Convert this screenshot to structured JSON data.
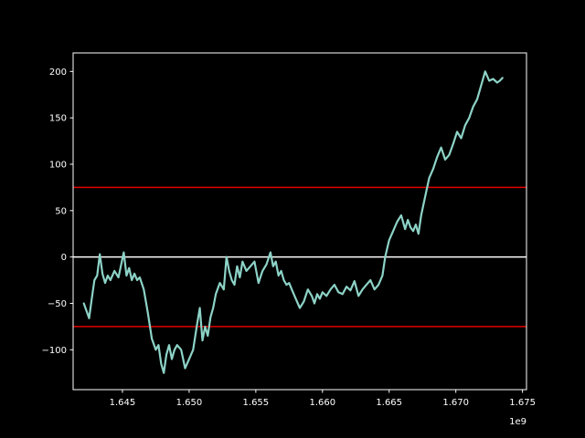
{
  "chart_data": {
    "type": "line",
    "title": "",
    "xlabel": "",
    "ylabel": "",
    "x_offset_label": "1e9",
    "xlim": [
      1.6413,
      1.6753
    ],
    "ylim": [
      -143,
      220
    ],
    "x_ticks": [
      1.645,
      1.65,
      1.655,
      1.66,
      1.665,
      1.67,
      1.675
    ],
    "x_tick_labels": [
      "1.645",
      "1.650",
      "1.655",
      "1.660",
      "1.665",
      "1.670",
      "1.675"
    ],
    "y_ticks": [
      -100,
      -50,
      0,
      50,
      100,
      150,
      200
    ],
    "y_tick_labels": [
      "−100",
      "−50",
      "0",
      "50",
      "100",
      "150",
      "200"
    ],
    "grid": false,
    "background": "#000000",
    "axis_color": "#ffffff",
    "series": [
      {
        "color": "#8dd3c7",
        "x": [
          1.6421,
          1.6423,
          1.6425,
          1.6427,
          1.6429,
          1.6431,
          1.6433,
          1.6435,
          1.6437,
          1.6439,
          1.6441,
          1.6444,
          1.6447,
          1.6451,
          1.6453,
          1.6455,
          1.6457,
          1.6459,
          1.6461,
          1.6463,
          1.6466,
          1.6469,
          1.6472,
          1.6475,
          1.6477,
          1.6479,
          1.6481,
          1.6483,
          1.6485,
          1.6487,
          1.6489,
          1.6491,
          1.6494,
          1.6497,
          1.65,
          1.6503,
          1.6506,
          1.6508,
          1.651,
          1.6512,
          1.6514,
          1.6516,
          1.6518,
          1.652,
          1.6523,
          1.6526,
          1.6528,
          1.653,
          1.6532,
          1.6534,
          1.6536,
          1.6538,
          1.654,
          1.6543,
          1.6546,
          1.6549,
          1.6552,
          1.6555,
          1.6558,
          1.6561,
          1.6563,
          1.6565,
          1.6567,
          1.6569,
          1.6571,
          1.6573,
          1.6575,
          1.6577,
          1.658,
          1.6583,
          1.6586,
          1.6589,
          1.6592,
          1.6594,
          1.6596,
          1.6598,
          1.66,
          1.6603,
          1.6606,
          1.6609,
          1.6612,
          1.6615,
          1.6618,
          1.6621,
          1.6624,
          1.6627,
          1.663,
          1.6633,
          1.6636,
          1.6639,
          1.6642,
          1.6645,
          1.6647,
          1.665,
          1.6653,
          1.6656,
          1.6659,
          1.6662,
          1.6664,
          1.6666,
          1.6668,
          1.667,
          1.6672,
          1.6674,
          1.6677,
          1.668,
          1.6683,
          1.6686,
          1.6689,
          1.6692,
          1.6695,
          1.6698,
          1.6701,
          1.6704,
          1.6707,
          1.671,
          1.6713,
          1.6716,
          1.6719,
          1.6722,
          1.6725,
          1.6728,
          1.6731,
          1.6733,
          1.6735
        ],
        "y": [
          -50,
          -58,
          -66,
          -45,
          -25,
          -20,
          3,
          -18,
          -28,
          -20,
          -25,
          -15,
          -22,
          5,
          -20,
          -12,
          -25,
          -18,
          -25,
          -22,
          -35,
          -60,
          -88,
          -100,
          -95,
          -115,
          -125,
          -105,
          -95,
          -110,
          -100,
          -95,
          -100,
          -120,
          -110,
          -100,
          -72,
          -55,
          -90,
          -75,
          -85,
          -65,
          -55,
          -40,
          -28,
          -35,
          0,
          -15,
          -25,
          -30,
          -10,
          -22,
          -5,
          -15,
          -10,
          -5,
          -28,
          -15,
          -8,
          5,
          -10,
          -5,
          -20,
          -15,
          -25,
          -30,
          -28,
          -35,
          -45,
          -55,
          -48,
          -35,
          -42,
          -50,
          -40,
          -45,
          -38,
          -42,
          -35,
          -30,
          -38,
          -40,
          -32,
          -36,
          -26,
          -42,
          -35,
          -30,
          -25,
          -35,
          -30,
          -20,
          0,
          18,
          28,
          38,
          45,
          30,
          40,
          32,
          28,
          35,
          25,
          45,
          65,
          85,
          95,
          108,
          118,
          105,
          110,
          122,
          135,
          128,
          142,
          150,
          162,
          170,
          185,
          200,
          190,
          192,
          188,
          190,
          193
        ]
      }
    ],
    "reference_lines": [
      {
        "y": 0,
        "color": "#ffffff"
      },
      {
        "y": 75,
        "color": "#e00000"
      },
      {
        "y": -75,
        "color": "#e00000"
      }
    ]
  }
}
